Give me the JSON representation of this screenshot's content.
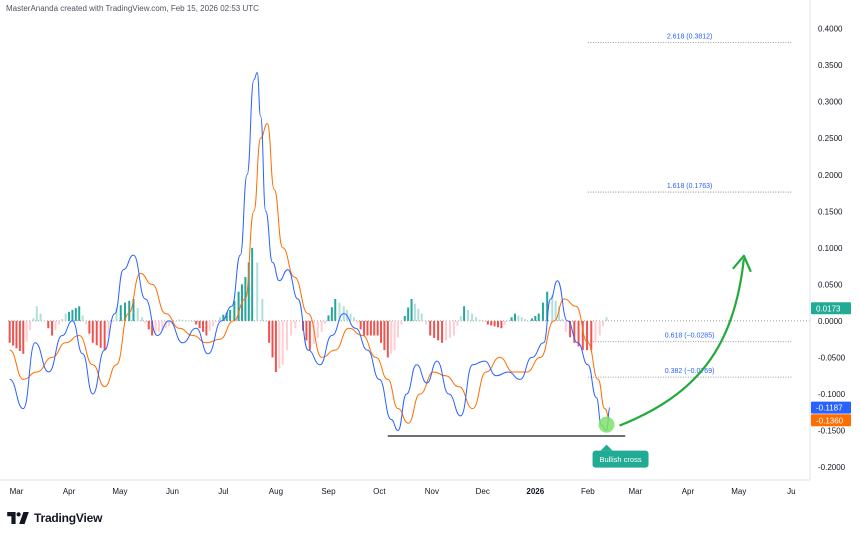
{
  "header": {
    "credit": "MasterAnanda created with TradingView.com, Feb 15, 2026 02:53 UTC"
  },
  "branding": {
    "name": "TradingView"
  },
  "colors": {
    "macd": "#2962ff",
    "signal": "#ff6d00",
    "hist_pos_strong": "#26a69a",
    "hist_pos_weak": "#b2dfdb",
    "hist_neg_strong": "#ef5350",
    "hist_neg_weak": "#ffcdd2",
    "fib": "#2962ff",
    "support": "#131722",
    "arrow": "#22ab3c",
    "highlight": "#7ee26a",
    "badge_pos": "#22ab94"
  },
  "chart_data": {
    "type": "line",
    "title": "",
    "xlabel": "",
    "ylabel": "",
    "ylim": [
      -0.215,
      0.42
    ],
    "grid": false,
    "x_ticks": [
      "Mar",
      "Apr",
      "May",
      "Jun",
      "Jul",
      "Aug",
      "Sep",
      "Oct",
      "Nov",
      "Dec",
      "2026",
      "Feb",
      "Mar",
      "Apr",
      "May",
      "Ju"
    ],
    "y_ticks": [
      "0.4000",
      "0.3500",
      "0.3000",
      "0.2500",
      "0.2000",
      "0.1500",
      "0.1000",
      "0.0500",
      "0.0000",
      "-0.0500",
      "-0.1000",
      "-0.1500",
      "-0.2000"
    ],
    "y_tick_values": [
      0.4,
      0.35,
      0.3,
      0.25,
      0.2,
      0.15,
      0.1,
      0.05,
      0.0,
      -0.05,
      -0.1,
      -0.15,
      -0.2
    ],
    "series": [
      {
        "key": "macd",
        "x": [
          "2025-02-25",
          "2025-03-05",
          "2025-03-12",
          "2025-03-20",
          "2025-03-28",
          "2025-04-03",
          "2025-04-09",
          "2025-04-15",
          "2025-04-22",
          "2025-04-28",
          "2025-05-03",
          "2025-05-09",
          "2025-05-16",
          "2025-05-23",
          "2025-05-30",
          "2025-06-07",
          "2025-06-15",
          "2025-06-22",
          "2025-06-30",
          "2025-07-06",
          "2025-07-11",
          "2025-07-15",
          "2025-07-19",
          "2025-07-21",
          "2025-07-23",
          "2025-07-26",
          "2025-07-30",
          "2025-08-03",
          "2025-08-08",
          "2025-08-14",
          "2025-08-20",
          "2025-08-27",
          "2025-09-03",
          "2025-09-10",
          "2025-09-17",
          "2025-09-24",
          "2025-10-01",
          "2025-10-08",
          "2025-10-12",
          "2025-10-17",
          "2025-10-23",
          "2025-10-29",
          "2025-11-04",
          "2025-11-11",
          "2025-11-18",
          "2025-11-25",
          "2025-12-02",
          "2025-12-09",
          "2025-12-16",
          "2025-12-23",
          "2025-12-30",
          "2026-01-06",
          "2026-01-10",
          "2026-01-14",
          "2026-01-20",
          "2026-01-26",
          "2026-02-01",
          "2026-02-06",
          "2026-02-09",
          "2026-02-12",
          "2026-02-14"
        ],
        "y": [
          -0.08,
          -0.12,
          -0.03,
          -0.07,
          -0.02,
          0.0,
          -0.045,
          -0.1,
          -0.04,
          0.01,
          0.07,
          0.09,
          0.03,
          -0.02,
          0.0,
          -0.03,
          -0.01,
          -0.045,
          0.0,
          0.02,
          0.09,
          0.2,
          0.33,
          0.34,
          0.28,
          0.15,
          0.08,
          0.055,
          0.07,
          0.03,
          -0.04,
          -0.06,
          -0.02,
          0.01,
          -0.01,
          -0.04,
          -0.08,
          -0.135,
          -0.15,
          -0.1,
          -0.06,
          -0.085,
          -0.055,
          -0.1,
          -0.13,
          -0.06,
          -0.055,
          -0.075,
          -0.07,
          -0.08,
          -0.05,
          -0.03,
          0.03,
          0.055,
          0.0,
          -0.03,
          -0.06,
          -0.105,
          -0.143,
          -0.15,
          -0.1187
        ]
      },
      {
        "key": "signal",
        "x": [
          "2025-02-25",
          "2025-03-05",
          "2025-03-13",
          "2025-03-22",
          "2025-03-30",
          "2025-04-07",
          "2025-04-15",
          "2025-04-22",
          "2025-04-29",
          "2025-05-06",
          "2025-05-13",
          "2025-05-20",
          "2025-05-28",
          "2025-06-05",
          "2025-06-13",
          "2025-06-21",
          "2025-06-29",
          "2025-07-07",
          "2025-07-14",
          "2025-07-19",
          "2025-07-23",
          "2025-07-27",
          "2025-07-31",
          "2025-08-05",
          "2025-08-12",
          "2025-08-20",
          "2025-08-28",
          "2025-09-05",
          "2025-09-13",
          "2025-09-21",
          "2025-09-29",
          "2025-10-06",
          "2025-10-12",
          "2025-10-18",
          "2025-10-25",
          "2025-11-02",
          "2025-11-09",
          "2025-11-17",
          "2025-11-25",
          "2025-12-03",
          "2025-12-11",
          "2025-12-19",
          "2025-12-27",
          "2026-01-04",
          "2026-01-12",
          "2026-01-18",
          "2026-01-25",
          "2026-02-01",
          "2026-02-07",
          "2026-02-11",
          "2026-02-14"
        ],
        "y": [
          -0.04,
          -0.08,
          -0.07,
          -0.05,
          -0.03,
          -0.02,
          -0.06,
          -0.09,
          -0.06,
          0.01,
          0.065,
          0.05,
          0.01,
          -0.01,
          -0.02,
          -0.03,
          -0.025,
          0.0,
          0.03,
          0.15,
          0.25,
          0.27,
          0.18,
          0.1,
          0.06,
          0.01,
          -0.05,
          -0.04,
          -0.01,
          -0.02,
          -0.05,
          -0.08,
          -0.12,
          -0.14,
          -0.1,
          -0.07,
          -0.075,
          -0.09,
          -0.12,
          -0.07,
          -0.05,
          -0.07,
          -0.07,
          -0.05,
          0.0,
          0.03,
          0.02,
          -0.03,
          -0.08,
          -0.12,
          -0.136
        ]
      },
      {
        "key": "histogram",
        "x": [
          "2025-02-25",
          "2025-03-05",
          "2025-03-13",
          "2025-03-22",
          "2025-03-30",
          "2025-04-07",
          "2025-04-15",
          "2025-04-22",
          "2025-04-29",
          "2025-05-04",
          "2025-05-09",
          "2025-05-14",
          "2025-05-20",
          "2025-05-28",
          "2025-06-05",
          "2025-06-13",
          "2025-06-21",
          "2025-06-29",
          "2025-07-05",
          "2025-07-10",
          "2025-07-14",
          "2025-07-18",
          "2025-07-21",
          "2025-07-24",
          "2025-07-28",
          "2025-08-01",
          "2025-08-05",
          "2025-08-10",
          "2025-08-15",
          "2025-08-21",
          "2025-08-28",
          "2025-09-05",
          "2025-09-10",
          "2025-09-16",
          "2025-09-22",
          "2025-09-30",
          "2025-10-06",
          "2025-10-10",
          "2025-10-14",
          "2025-10-20",
          "2025-10-26",
          "2025-10-31",
          "2025-11-07",
          "2025-11-14",
          "2025-11-20",
          "2025-11-27",
          "2025-12-04",
          "2025-12-12",
          "2025-12-20",
          "2025-12-28",
          "2026-01-03",
          "2026-01-08",
          "2026-01-11",
          "2026-01-15",
          "2026-01-19",
          "2026-01-24",
          "2026-01-29",
          "2026-02-03",
          "2026-02-08",
          "2026-02-12",
          "2026-02-14"
        ],
        "y": [
          -0.03,
          -0.045,
          0.02,
          -0.02,
          0.01,
          0.02,
          -0.03,
          -0.04,
          0.018,
          0.025,
          0.03,
          0.005,
          -0.02,
          -0.01,
          0.002,
          0.0,
          -0.02,
          0.005,
          0.015,
          0.04,
          0.06,
          0.1,
          0.08,
          0.03,
          -0.03,
          -0.07,
          -0.06,
          -0.02,
          0.0,
          -0.04,
          -0.015,
          0.03,
          0.02,
          0.005,
          -0.02,
          -0.02,
          -0.05,
          -0.04,
          -0.005,
          0.03,
          0.01,
          -0.02,
          -0.03,
          -0.02,
          0.02,
          0.005,
          -0.005,
          -0.01,
          0.01,
          0.0,
          0.01,
          0.04,
          0.035,
          0.02,
          -0.015,
          -0.03,
          -0.04,
          -0.04,
          -0.02,
          0.005,
          0.018
        ]
      }
    ],
    "last_values": [
      {
        "label": "0.0173",
        "value": 0.0173,
        "color_key": "badge_pos"
      },
      {
        "label": "-0.1187",
        "value": -0.1187,
        "color_key": "macd"
      },
      {
        "label": "-0.1360",
        "value": -0.136,
        "color_key": "signal"
      }
    ],
    "fib_levels": [
      {
        "label": "2.618 (0.3812)",
        "value": 0.3812
      },
      {
        "label": "1.618 (0.1763)",
        "value": 0.1763
      },
      {
        "label": "0.618 (−0.0285)",
        "value": -0.0285
      },
      {
        "label": "0.382 (−0.0769)",
        "value": -0.0769
      }
    ],
    "support_level": -0.1575,
    "annotation": {
      "text": "Bullish cross",
      "date": "2026-02-12",
      "value": -0.142
    }
  }
}
